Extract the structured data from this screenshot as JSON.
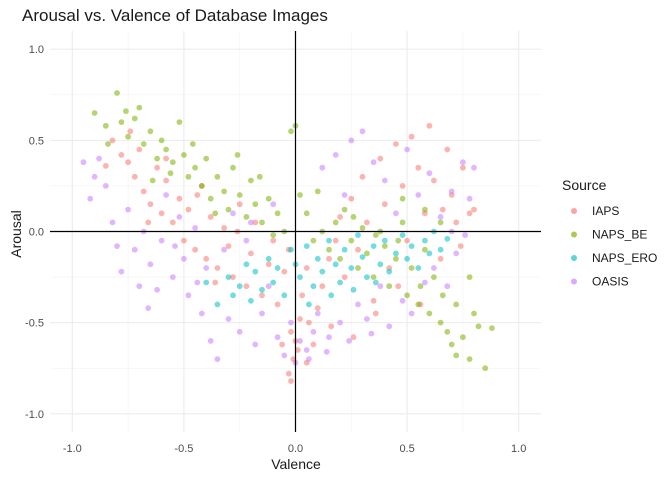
{
  "chart_data": {
    "type": "scatter",
    "title": "Arousal vs. Valence of Database Images",
    "xlabel": "Valence",
    "ylabel": "Arousal",
    "xlim": [
      -1.1,
      1.1
    ],
    "ylim": [
      -1.1,
      1.1
    ],
    "x_ticks": [
      -1.0,
      -0.5,
      0.0,
      0.5,
      1.0
    ],
    "x_tick_labels": [
      "-1.0",
      "-0.5",
      "0.0",
      "0.5",
      "1.0"
    ],
    "y_ticks": [
      -1.0,
      -0.5,
      0.0,
      0.5,
      1.0
    ],
    "y_tick_labels": [
      "-1.0",
      "-0.5",
      "0.0",
      "0.5",
      "1.0"
    ],
    "grid": true,
    "reference_lines": {
      "x": 0,
      "y": 0
    },
    "legend": {
      "title": "Source",
      "position": "right"
    },
    "series": [
      {
        "name": "IAPS",
        "color": "#F8766D",
        "points": [
          [
            -0.82,
            0.5
          ],
          [
            -0.78,
            0.42
          ],
          [
            -0.75,
            0.38
          ],
          [
            -0.72,
            0.3
          ],
          [
            -0.7,
            0.45
          ],
          [
            -0.68,
            0.22
          ],
          [
            -0.65,
            0.15
          ],
          [
            -0.62,
            0.35
          ],
          [
            -0.6,
            0.1
          ],
          [
            -0.58,
            0.28
          ],
          [
            -0.55,
            0.05
          ],
          [
            -0.52,
            0.18
          ],
          [
            -0.5,
            -0.05
          ],
          [
            -0.48,
            0.12
          ],
          [
            -0.45,
            -0.1
          ],
          [
            -0.42,
            0.25
          ],
          [
            -0.4,
            -0.15
          ],
          [
            -0.38,
            0.08
          ],
          [
            -0.35,
            -0.2
          ],
          [
            -0.32,
            0.02
          ],
          [
            -0.3,
            -0.08
          ],
          [
            -0.28,
            -0.25
          ],
          [
            -0.25,
            0.15
          ],
          [
            -0.22,
            -0.3
          ],
          [
            -0.2,
            -0.12
          ],
          [
            -0.18,
            0.05
          ],
          [
            -0.15,
            -0.35
          ],
          [
            -0.12,
            -0.18
          ],
          [
            -0.1,
            -0.05
          ],
          [
            -0.08,
            -0.4
          ],
          [
            -0.05,
            -0.22
          ],
          [
            -0.03,
            -0.1
          ],
          [
            -0.02,
            -0.55
          ],
          [
            0.0,
            -0.6
          ],
          [
            0.01,
            -0.65
          ],
          [
            -0.01,
            -0.7
          ],
          [
            -0.03,
            -0.78
          ],
          [
            -0.02,
            -0.82
          ],
          [
            0.02,
            -0.48
          ],
          [
            0.03,
            -0.35
          ],
          [
            0.05,
            -0.2
          ],
          [
            0.06,
            -0.5
          ],
          [
            0.08,
            -0.62
          ],
          [
            0.1,
            -0.42
          ],
          [
            0.12,
            -0.3
          ],
          [
            0.15,
            -0.15
          ],
          [
            0.18,
            -0.05
          ],
          [
            0.2,
            0.08
          ],
          [
            0.22,
            -0.25
          ],
          [
            0.25,
            0.18
          ],
          [
            0.28,
            -0.1
          ],
          [
            0.3,
            0.3
          ],
          [
            0.32,
            0.05
          ],
          [
            0.35,
            -0.38
          ],
          [
            0.38,
            0.4
          ],
          [
            0.4,
            0.15
          ],
          [
            0.42,
            -0.2
          ],
          [
            0.45,
            0.48
          ],
          [
            0.48,
            0.25
          ],
          [
            0.5,
            -0.05
          ],
          [
            0.52,
            0.52
          ],
          [
            0.55,
            0.35
          ],
          [
            0.58,
            0.1
          ],
          [
            0.6,
            0.58
          ],
          [
            0.62,
            0.28
          ],
          [
            0.65,
            -0.15
          ],
          [
            0.68,
            0.45
          ],
          [
            0.7,
            0.2
          ],
          [
            0.72,
            0.05
          ],
          [
            0.75,
            0.35
          ],
          [
            0.78,
            0.1
          ],
          [
            0.8,
            0.12
          ],
          [
            -0.85,
            0.36
          ],
          [
            -0.66,
            0.05
          ],
          [
            -0.44,
            0.2
          ],
          [
            -0.36,
            -0.28
          ],
          [
            -0.26,
            0.0
          ],
          [
            0.36,
            -0.45
          ],
          [
            0.46,
            -0.3
          ],
          [
            0.56,
            -0.4
          ],
          [
            0.66,
            0.12
          ],
          [
            0.74,
            -0.08
          ],
          [
            -0.58,
            0.4
          ],
          [
            -0.74,
            0.55
          ],
          [
            0.16,
            -0.52
          ],
          [
            0.26,
            -0.58
          ],
          [
            0.05,
            -0.72
          ],
          [
            -0.06,
            -0.62
          ]
        ]
      },
      {
        "name": "NAPS_BE",
        "color": "#7CAE00",
        "points": [
          [
            -0.9,
            0.65
          ],
          [
            -0.85,
            0.58
          ],
          [
            -0.8,
            0.76
          ],
          [
            -0.78,
            0.6
          ],
          [
            -0.75,
            0.52
          ],
          [
            -0.72,
            0.62
          ],
          [
            -0.7,
            0.68
          ],
          [
            -0.68,
            0.48
          ],
          [
            -0.65,
            0.55
          ],
          [
            -0.62,
            0.4
          ],
          [
            -0.6,
            0.5
          ],
          [
            -0.58,
            0.45
          ],
          [
            -0.55,
            0.38
          ],
          [
            -0.52,
            0.6
          ],
          [
            -0.5,
            0.42
          ],
          [
            -0.48,
            0.3
          ],
          [
            -0.45,
            0.35
          ],
          [
            -0.42,
            0.25
          ],
          [
            -0.4,
            0.4
          ],
          [
            -0.38,
            0.18
          ],
          [
            -0.35,
            0.3
          ],
          [
            -0.32,
            0.22
          ],
          [
            -0.3,
            0.12
          ],
          [
            -0.28,
            0.35
          ],
          [
            -0.25,
            0.2
          ],
          [
            -0.22,
            0.08
          ],
          [
            -0.2,
            0.28
          ],
          [
            -0.18,
            0.15
          ],
          [
            -0.15,
            0.05
          ],
          [
            -0.12,
            0.18
          ],
          [
            -0.1,
            -0.02
          ],
          [
            -0.08,
            0.1
          ],
          [
            -0.05,
            0.0
          ],
          [
            -0.02,
            0.55
          ],
          [
            0.0,
            0.58
          ],
          [
            0.02,
            0.2
          ],
          [
            0.05,
            0.1
          ],
          [
            0.08,
            -0.05
          ],
          [
            0.1,
            0.22
          ],
          [
            0.12,
            0.0
          ],
          [
            0.15,
            -0.1
          ],
          [
            0.18,
            0.05
          ],
          [
            0.2,
            -0.15
          ],
          [
            0.22,
            0.12
          ],
          [
            0.25,
            -0.05
          ],
          [
            0.28,
            -0.2
          ],
          [
            0.3,
            0.02
          ],
          [
            0.32,
            -0.12
          ],
          [
            0.35,
            -0.25
          ],
          [
            0.38,
            0.0
          ],
          [
            0.4,
            -0.08
          ],
          [
            0.42,
            -0.3
          ],
          [
            0.45,
            -0.15
          ],
          [
            0.48,
            0.05
          ],
          [
            0.5,
            -0.35
          ],
          [
            0.52,
            -0.2
          ],
          [
            0.55,
            -0.4
          ],
          [
            0.58,
            -0.1
          ],
          [
            0.6,
            -0.45
          ],
          [
            0.62,
            -0.25
          ],
          [
            0.65,
            -0.5
          ],
          [
            0.68,
            -0.55
          ],
          [
            0.7,
            -0.62
          ],
          [
            0.72,
            -0.68
          ],
          [
            0.75,
            -0.58
          ],
          [
            0.78,
            -0.7
          ],
          [
            0.8,
            -0.45
          ],
          [
            0.82,
            -0.52
          ],
          [
            0.85,
            -0.75
          ],
          [
            0.88,
            -0.53
          ],
          [
            0.78,
            -0.25
          ],
          [
            0.65,
            0.05
          ],
          [
            0.58,
            0.12
          ],
          [
            0.48,
            0.18
          ],
          [
            -0.56,
            0.32
          ],
          [
            -0.64,
            0.28
          ],
          [
            -0.46,
            0.48
          ],
          [
            -0.36,
            0.1
          ],
          [
            -0.26,
            0.42
          ],
          [
            -0.16,
            0.3
          ],
          [
            0.26,
            0.08
          ],
          [
            0.36,
            -0.02
          ],
          [
            0.46,
            -0.05
          ],
          [
            0.56,
            -0.3
          ],
          [
            0.66,
            -0.35
          ],
          [
            0.72,
            -0.4
          ],
          [
            -0.84,
            0.48
          ],
          [
            -0.76,
            0.66
          ]
        ]
      },
      {
        "name": "NAPS_ERO",
        "color": "#00BFC4",
        "points": [
          [
            -0.3,
            -0.25
          ],
          [
            -0.28,
            -0.35
          ],
          [
            -0.25,
            -0.3
          ],
          [
            -0.22,
            -0.18
          ],
          [
            -0.2,
            -0.38
          ],
          [
            -0.18,
            -0.22
          ],
          [
            -0.15,
            -0.32
          ],
          [
            -0.12,
            -0.15
          ],
          [
            -0.1,
            -0.28
          ],
          [
            -0.08,
            -0.2
          ],
          [
            -0.05,
            -0.35
          ],
          [
            -0.02,
            -0.1
          ],
          [
            0.0,
            -0.18
          ],
          [
            0.02,
            -0.25
          ],
          [
            0.05,
            -0.08
          ],
          [
            0.08,
            -0.3
          ],
          [
            0.1,
            -0.15
          ],
          [
            0.12,
            -0.22
          ],
          [
            0.15,
            -0.05
          ],
          [
            0.18,
            -0.18
          ],
          [
            0.2,
            -0.28
          ],
          [
            0.22,
            -0.1
          ],
          [
            0.25,
            -0.2
          ],
          [
            0.28,
            -0.02
          ],
          [
            0.3,
            -0.14
          ],
          [
            0.32,
            -0.25
          ],
          [
            0.35,
            -0.08
          ],
          [
            0.38,
            -0.18
          ],
          [
            0.4,
            -0.05
          ],
          [
            0.42,
            -0.22
          ],
          [
            0.45,
            -0.12
          ],
          [
            0.48,
            -0.02
          ],
          [
            0.5,
            -0.15
          ],
          [
            0.52,
            -0.08
          ],
          [
            0.55,
            -0.2
          ],
          [
            0.58,
            -0.05
          ],
          [
            0.6,
            -0.12
          ],
          [
            0.62,
            0.0
          ],
          [
            0.65,
            -0.1
          ],
          [
            0.68,
            -0.04
          ],
          [
            -0.35,
            -0.4
          ],
          [
            -0.4,
            -0.28
          ],
          [
            0.06,
            -0.4
          ],
          [
            0.16,
            -0.35
          ],
          [
            0.26,
            -0.32
          ],
          [
            0.36,
            -0.28
          ]
        ]
      },
      {
        "name": "OASIS",
        "color": "#C77CFF",
        "points": [
          [
            -0.95,
            0.38
          ],
          [
            -0.92,
            0.18
          ],
          [
            -0.88,
            0.4
          ],
          [
            -0.85,
            0.25
          ],
          [
            -0.82,
            0.05
          ],
          [
            -0.8,
            -0.08
          ],
          [
            -0.78,
            -0.22
          ],
          [
            -0.75,
            0.12
          ],
          [
            -0.72,
            -0.1
          ],
          [
            -0.7,
            -0.3
          ],
          [
            -0.68,
            0.0
          ],
          [
            -0.65,
            -0.18
          ],
          [
            -0.62,
            -0.32
          ],
          [
            -0.6,
            -0.05
          ],
          [
            -0.58,
            0.2
          ],
          [
            -0.55,
            -0.25
          ],
          [
            -0.52,
            0.08
          ],
          [
            -0.5,
            -0.15
          ],
          [
            -0.48,
            -0.35
          ],
          [
            -0.45,
            0.02
          ],
          [
            -0.42,
            -0.45
          ],
          [
            -0.4,
            -0.2
          ],
          [
            -0.38,
            -0.6
          ],
          [
            -0.35,
            -0.7
          ],
          [
            -0.32,
            -0.1
          ],
          [
            -0.3,
            -0.48
          ],
          [
            -0.28,
            0.1
          ],
          [
            -0.25,
            -0.55
          ],
          [
            -0.22,
            -0.05
          ],
          [
            -0.2,
            0.05
          ],
          [
            -0.18,
            -0.62
          ],
          [
            -0.15,
            -0.45
          ],
          [
            -0.12,
            -0.3
          ],
          [
            -0.1,
            0.15
          ],
          [
            -0.08,
            -0.58
          ],
          [
            -0.05,
            -0.68
          ],
          [
            -0.02,
            -0.5
          ],
          [
            0.0,
            -0.72
          ],
          [
            0.02,
            -0.6
          ],
          [
            0.05,
            -0.65
          ],
          [
            0.08,
            -0.55
          ],
          [
            0.1,
            -0.45
          ],
          [
            0.12,
            0.35
          ],
          [
            0.15,
            -0.58
          ],
          [
            0.18,
            0.42
          ],
          [
            0.2,
            -0.5
          ],
          [
            0.22,
            0.2
          ],
          [
            0.25,
            0.5
          ],
          [
            0.28,
            -0.4
          ],
          [
            0.3,
            0.55
          ],
          [
            0.32,
            -0.48
          ],
          [
            0.35,
            0.38
          ],
          [
            0.38,
            -0.3
          ],
          [
            0.4,
            0.28
          ],
          [
            0.42,
            -0.52
          ],
          [
            0.45,
            0.1
          ],
          [
            0.48,
            -0.38
          ],
          [
            0.5,
            0.45
          ],
          [
            0.52,
            -0.45
          ],
          [
            0.55,
            0.2
          ],
          [
            0.58,
            -0.28
          ],
          [
            0.6,
            0.32
          ],
          [
            0.62,
            -0.2
          ],
          [
            0.65,
            0.08
          ],
          [
            0.68,
            -0.3
          ],
          [
            0.7,
            0.22
          ],
          [
            0.72,
            -0.12
          ],
          [
            0.75,
            0.38
          ],
          [
            0.78,
            0.18
          ],
          [
            0.8,
            0.35
          ],
          [
            0.76,
            -0.02
          ],
          [
            0.7,
            0.0
          ],
          [
            -0.9,
            0.3
          ],
          [
            -0.66,
            -0.42
          ],
          [
            -0.54,
            -0.08
          ],
          [
            -0.44,
            -0.28
          ],
          [
            0.06,
            -0.7
          ],
          [
            0.14,
            -0.66
          ],
          [
            0.24,
            -0.6
          ],
          [
            0.34,
            -0.56
          ]
        ]
      }
    ]
  }
}
